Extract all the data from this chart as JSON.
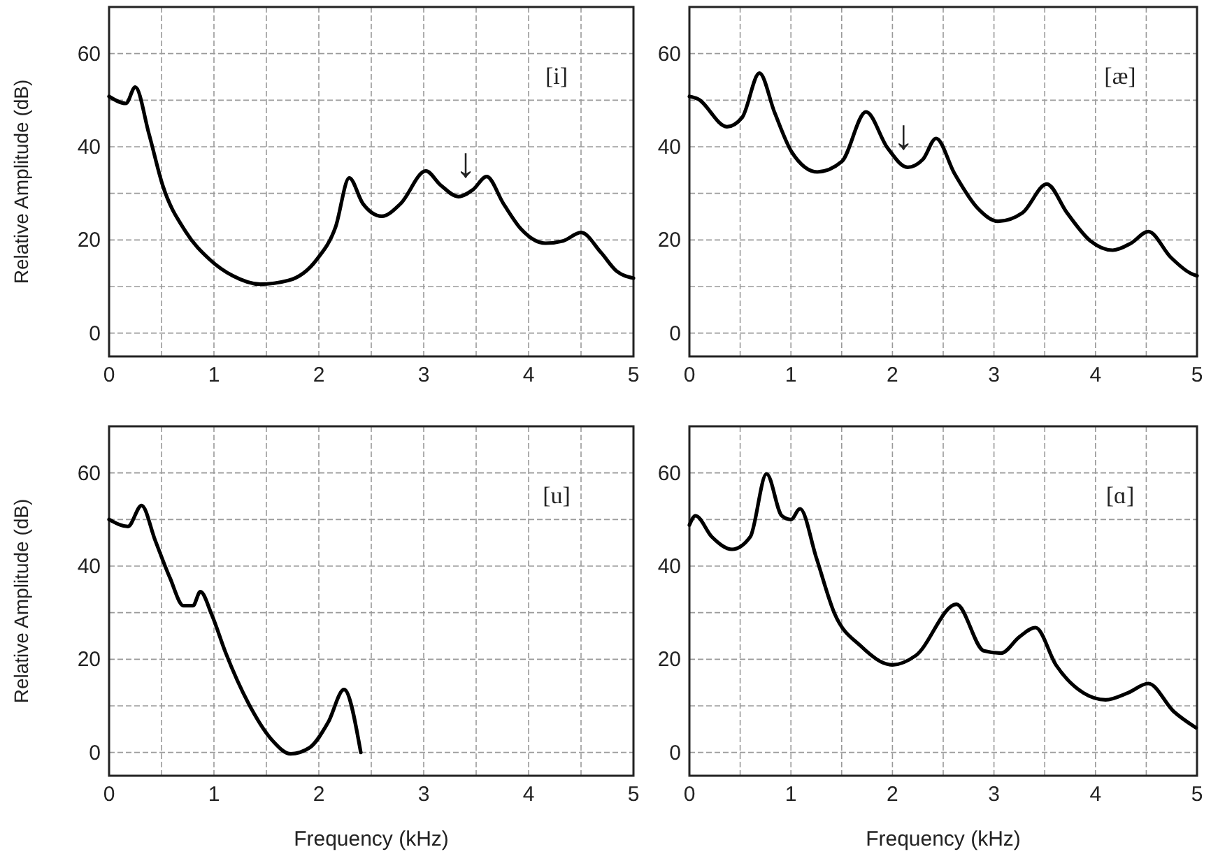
{
  "chart_data": [
    {
      "type": "line",
      "ylabel": "Relative Amplitude (dB)",
      "annotations": [
        "[i]",
        {
          "text": "↓",
          "x": 3.4,
          "y": 30
        }
      ],
      "xlim": [
        0,
        5
      ],
      "ylim": [
        -5,
        70
      ],
      "grid": true,
      "line_style": "solid",
      "xticks": [
        0,
        {
          "value": 0.5,
          "label": null
        },
        1,
        {
          "value": 1.5,
          "label": null
        },
        2,
        {
          "value": 2.5,
          "label": null
        },
        3,
        {
          "value": 3.5,
          "label": null
        },
        4,
        {
          "value": 4.5,
          "label": null
        },
        5
      ],
      "yticks": [
        0,
        {
          "value": 10,
          "label": null
        },
        20,
        {
          "value": 30,
          "label": null
        },
        40,
        {
          "value": 50,
          "label": null
        },
        60
      ],
      "series": [
        {
          "color": "#000000",
          "x": [
            0,
            0.16,
            0.25,
            0.38,
            0.51,
            0.73,
            0.96,
            1.18,
            1.44,
            1.71,
            1.98,
            2.16,
            2.29,
            2.42,
            2.6,
            2.78,
            3.02,
            3.16,
            3.33,
            3.47,
            3.6,
            3.76,
            3.93,
            4.16,
            4.33,
            4.5,
            4.69,
            4.84,
            5
          ],
          "values": [
            50.8,
            49.3,
            52.8,
            42.8,
            31.8,
            21.8,
            15.8,
            12.3,
            10.5,
            11.3,
            15.8,
            22.8,
            33.3,
            27.8,
            25.1,
            27.8,
            34.8,
            31.8,
            29.3,
            30.8,
            33.6,
            27.8,
            22.3,
            19.3,
            19.8,
            21.6,
            17.3,
            13.3,
            11.8
          ]
        }
      ]
    },
    {
      "type": "line",
      "annotations": [
        "[æ]",
        {
          "text": "↓",
          "x": 2.11,
          "y": 36
        }
      ],
      "xlim": [
        0,
        5
      ],
      "ylim": [
        -5,
        70
      ],
      "grid": true,
      "line_style": "solid",
      "xticks": [
        0,
        {
          "value": 0.5,
          "label": null
        },
        1,
        {
          "value": 1.5,
          "label": null
        },
        2,
        {
          "value": 2.5,
          "label": null
        },
        3,
        {
          "value": 3.5,
          "label": null
        },
        4,
        {
          "value": 4.5,
          "label": null
        },
        5
      ],
      "yticks": [
        0,
        {
          "value": 10,
          "label": null
        },
        20,
        {
          "value": 30,
          "label": null
        },
        40,
        {
          "value": 50,
          "label": null
        },
        60
      ],
      "series": [
        {
          "color": "#000000",
          "x": [
            0,
            0.08,
            0.37,
            0.52,
            0.69,
            0.84,
            1.01,
            1.26,
            1.5,
            1.74,
            1.95,
            2.15,
            2.3,
            2.43,
            2.61,
            2.84,
            3.04,
            3.28,
            3.52,
            3.72,
            3.95,
            4.17,
            4.35,
            4.52,
            4.74,
            4.94,
            5
          ],
          "values": [
            50.8,
            50.3,
            44.3,
            46.3,
            55.8,
            47.3,
            38.8,
            34.6,
            36.8,
            47.5,
            39.8,
            35.6,
            37.3,
            41.8,
            34.3,
            26.8,
            24,
            25.8,
            32,
            25.8,
            19.8,
            17.8,
            19.3,
            21.8,
            16.3,
            12.8,
            12.3
          ]
        }
      ]
    },
    {
      "type": "line",
      "ylabel": "Relative Amplitude (dB)",
      "xlabel": "Frequency (kHz)",
      "annotations": [
        "[u]"
      ],
      "xlim": [
        0,
        5
      ],
      "ylim": [
        -5,
        70
      ],
      "grid": true,
      "line_style": "solid",
      "xticks": [
        0,
        {
          "value": 0.5,
          "label": null
        },
        1,
        {
          "value": 1.5,
          "label": null
        },
        2,
        {
          "value": 2.5,
          "label": null
        },
        3,
        {
          "value": 3.5,
          "label": null
        },
        4,
        {
          "value": 4.5,
          "label": null
        },
        5
      ],
      "yticks": [
        0,
        {
          "value": 10,
          "label": null
        },
        20,
        {
          "value": 30,
          "label": null
        },
        40,
        {
          "value": 50,
          "label": null
        },
        60
      ],
      "series": [
        {
          "color": "#000000",
          "x": [
            0,
            0.18,
            0.31,
            0.44,
            0.58,
            0.71,
            0.8,
            0.87,
            0.98,
            1.11,
            1.33,
            1.56,
            1.73,
            1.91,
            2.09,
            2.24,
            2.4
          ],
          "values": [
            50,
            48.5,
            53,
            45.5,
            37.5,
            31.5,
            31.5,
            34.5,
            29.5,
            21.5,
            10.5,
            2.5,
            -0.3,
            1,
            6.5,
            13.5,
            0
          ]
        }
      ]
    },
    {
      "type": "line",
      "xlabel": "Frequency (kHz)",
      "annotations": [
        "[ɑ]"
      ],
      "xlim": [
        0,
        5
      ],
      "ylim": [
        -5,
        70
      ],
      "grid": true,
      "line_style": "solid",
      "xticks": [
        0,
        {
          "value": 0.5,
          "label": null
        },
        1,
        {
          "value": 1.5,
          "label": null
        },
        2,
        {
          "value": 2.5,
          "label": null
        },
        3,
        {
          "value": 3.5,
          "label": null
        },
        4,
        {
          "value": 4.5,
          "label": null
        },
        5
      ],
      "yticks": [
        0,
        {
          "value": 10,
          "label": null
        },
        20,
        {
          "value": 30,
          "label": null
        },
        40,
        {
          "value": 50,
          "label": null
        },
        60
      ],
      "series": [
        {
          "color": "#000000",
          "x": [
            0,
            0.06,
            0.22,
            0.42,
            0.6,
            0.76,
            0.91,
            1,
            1.09,
            1.25,
            1.43,
            1.69,
            2,
            2.23,
            2.63,
            2.9,
            3.07,
            3.25,
            3.41,
            3.61,
            3.88,
            4.1,
            4.32,
            4.52,
            4.77,
            4.99
          ],
          "values": [
            48.8,
            50.8,
            46.3,
            43.6,
            46.3,
            59.8,
            50.8,
            50,
            52.3,
            41.8,
            29.8,
            22.8,
            18.8,
            20.8,
            31.8,
            21.8,
            21.3,
            24.8,
            26.8,
            18.8,
            12.8,
            11.3,
            12.8,
            14.8,
            8.8,
            5.3
          ]
        }
      ]
    }
  ]
}
